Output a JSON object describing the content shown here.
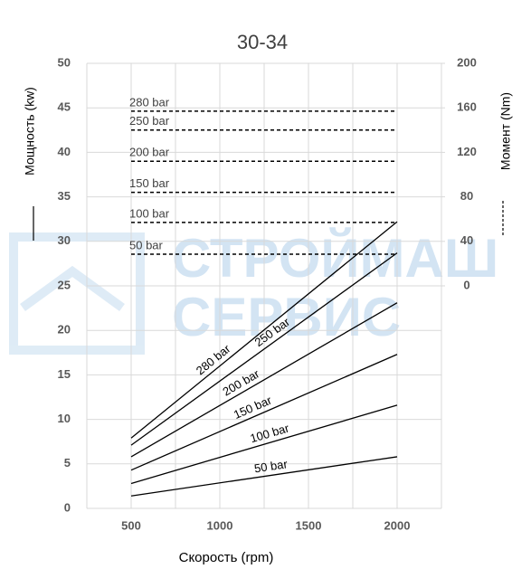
{
  "chart_data": {
    "type": "line",
    "title": "30-34",
    "x_label": "Скорость (rpm)",
    "y_label": "Мощность (kw)",
    "y2_label": "Момент (Nm)",
    "watermark": [
      "СТРОЙМАШ",
      "СЕРВИС"
    ],
    "xlim": [
      250,
      2250
    ],
    "xticks": [
      500,
      1000,
      1500,
      2000
    ],
    "xgrid": [
      250,
      500,
      750,
      1000,
      1250,
      1500,
      1750,
      2000,
      2250
    ],
    "ylim": [
      0,
      50
    ],
    "yticks": [
      0,
      5,
      10,
      15,
      20,
      25,
      30,
      35,
      40,
      45,
      50
    ],
    "y2lim": [
      -200,
      200
    ],
    "y2ticks": [
      0,
      40,
      80,
      120,
      160,
      200
    ],
    "grid": true,
    "series": [
      {
        "name": "280 bar",
        "color": "#000000",
        "x": [
          500,
          2000
        ],
        "values": [
          7.9,
          32.2
        ]
      },
      {
        "name": "250 bar",
        "color": "#000000",
        "x": [
          500,
          2000
        ],
        "values": [
          7.1,
          28.7
        ]
      },
      {
        "name": "200 bar",
        "color": "#000000",
        "x": [
          500,
          2000
        ],
        "values": [
          5.8,
          23.1
        ]
      },
      {
        "name": "150 bar",
        "color": "#000000",
        "x": [
          500,
          2000
        ],
        "values": [
          4.3,
          17.3
        ]
      },
      {
        "name": "100 bar",
        "color": "#000000",
        "x": [
          500,
          2000
        ],
        "values": [
          2.8,
          11.6
        ]
      },
      {
        "name": "50 bar",
        "color": "#000000",
        "x": [
          500,
          2000
        ],
        "values": [
          1.4,
          5.8
        ]
      },
      {
        "name": "280 bar",
        "color": "#000000",
        "axis": "y2",
        "dashed": true,
        "x": [
          500,
          2000
        ],
        "values": [
          157,
          157
        ]
      },
      {
        "name": "250 bar",
        "color": "#000000",
        "axis": "y2",
        "dashed": true,
        "x": [
          500,
          2000
        ],
        "values": [
          140,
          140
        ]
      },
      {
        "name": "200 bar",
        "color": "#000000",
        "axis": "y2",
        "dashed": true,
        "x": [
          500,
          2000
        ],
        "values": [
          112,
          112
        ]
      },
      {
        "name": "150 bar",
        "color": "#000000",
        "axis": "y2",
        "dashed": true,
        "x": [
          500,
          2000
        ],
        "values": [
          84,
          84
        ]
      },
      {
        "name": "100 bar",
        "color": "#000000",
        "axis": "y2",
        "dashed": true,
        "x": [
          500,
          2000
        ],
        "values": [
          57,
          57
        ]
      },
      {
        "name": "50 bar",
        "color": "#000000",
        "axis": "y2",
        "dashed": true,
        "x": [
          500,
          2000
        ],
        "values": [
          28.5,
          28.5
        ]
      }
    ]
  }
}
